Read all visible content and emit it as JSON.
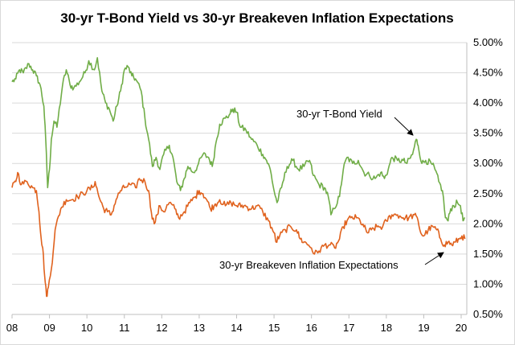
{
  "chart_data": {
    "type": "line",
    "title": "30-yr T-Bond Yield vs 30-yr Breakeven Inflation Expectations",
    "x_label": "",
    "y_label": "",
    "x_ticks": [
      "08",
      "09",
      "10",
      "11",
      "12",
      "13",
      "14",
      "15",
      "16",
      "17",
      "18",
      "19",
      "20"
    ],
    "y_ticks": [
      "0.50%",
      "1.00%",
      "1.50%",
      "2.00%",
      "2.50%",
      "3.00%",
      "3.50%",
      "4.00%",
      "4.50%",
      "5.00%"
    ],
    "ylim": [
      0.5,
      5.0
    ],
    "xlim": [
      2008.0,
      2020.15
    ],
    "grid": "horizontal",
    "y_axis_side": "right",
    "annotations": [
      {
        "text": "30-yr T-Bond Yield",
        "series": 0
      },
      {
        "text": "30-yr Breakeven Inflation Expectations",
        "series": 1
      }
    ],
    "series": [
      {
        "name": "30-yr T-Bond Yield",
        "color": "#70ad47",
        "points": [
          [
            2008.0,
            4.35
          ],
          [
            2008.1,
            4.4
          ],
          [
            2008.2,
            4.55
          ],
          [
            2008.3,
            4.5
          ],
          [
            2008.45,
            4.65
          ],
          [
            2008.55,
            4.55
          ],
          [
            2008.65,
            4.45
          ],
          [
            2008.75,
            4.3
          ],
          [
            2008.85,
            3.95
          ],
          [
            2008.9,
            3.4
          ],
          [
            2008.95,
            2.6
          ],
          [
            2009.0,
            2.9
          ],
          [
            2009.05,
            3.4
          ],
          [
            2009.12,
            3.7
          ],
          [
            2009.2,
            3.6
          ],
          [
            2009.35,
            4.3
          ],
          [
            2009.45,
            4.55
          ],
          [
            2009.55,
            4.3
          ],
          [
            2009.65,
            4.25
          ],
          [
            2009.8,
            4.35
          ],
          [
            2009.95,
            4.5
          ],
          [
            2010.05,
            4.7
          ],
          [
            2010.2,
            4.55
          ],
          [
            2010.28,
            4.75
          ],
          [
            2010.4,
            4.2
          ],
          [
            2010.5,
            4.0
          ],
          [
            2010.6,
            3.9
          ],
          [
            2010.7,
            3.7
          ],
          [
            2010.8,
            3.95
          ],
          [
            2010.9,
            4.2
          ],
          [
            2011.0,
            4.55
          ],
          [
            2011.1,
            4.6
          ],
          [
            2011.2,
            4.45
          ],
          [
            2011.3,
            4.4
          ],
          [
            2011.45,
            4.2
          ],
          [
            2011.55,
            3.75
          ],
          [
            2011.65,
            3.4
          ],
          [
            2011.75,
            2.95
          ],
          [
            2011.85,
            3.1
          ],
          [
            2011.95,
            2.9
          ],
          [
            2012.05,
            3.15
          ],
          [
            2012.2,
            3.3
          ],
          [
            2012.3,
            3.1
          ],
          [
            2012.4,
            2.7
          ],
          [
            2012.5,
            2.55
          ],
          [
            2012.6,
            2.75
          ],
          [
            2012.7,
            2.95
          ],
          [
            2012.85,
            2.85
          ],
          [
            2012.95,
            2.95
          ],
          [
            2013.1,
            3.15
          ],
          [
            2013.25,
            3.1
          ],
          [
            2013.35,
            2.95
          ],
          [
            2013.45,
            3.35
          ],
          [
            2013.55,
            3.65
          ],
          [
            2013.7,
            3.75
          ],
          [
            2013.8,
            3.8
          ],
          [
            2013.9,
            3.9
          ],
          [
            2014.0,
            3.85
          ],
          [
            2014.1,
            3.6
          ],
          [
            2014.25,
            3.55
          ],
          [
            2014.4,
            3.4
          ],
          [
            2014.55,
            3.3
          ],
          [
            2014.7,
            3.15
          ],
          [
            2014.8,
            3.05
          ],
          [
            2014.9,
            2.9
          ],
          [
            2015.0,
            2.55
          ],
          [
            2015.08,
            2.35
          ],
          [
            2015.2,
            2.6
          ],
          [
            2015.35,
            2.95
          ],
          [
            2015.5,
            3.05
          ],
          [
            2015.65,
            2.9
          ],
          [
            2015.8,
            2.95
          ],
          [
            2015.95,
            3.05
          ],
          [
            2016.05,
            2.8
          ],
          [
            2016.2,
            2.65
          ],
          [
            2016.35,
            2.6
          ],
          [
            2016.45,
            2.45
          ],
          [
            2016.52,
            2.15
          ],
          [
            2016.6,
            2.25
          ],
          [
            2016.75,
            2.45
          ],
          [
            2016.85,
            2.9
          ],
          [
            2016.95,
            3.1
          ],
          [
            2017.1,
            3.0
          ],
          [
            2017.25,
            3.05
          ],
          [
            2017.4,
            2.85
          ],
          [
            2017.55,
            2.8
          ],
          [
            2017.7,
            2.75
          ],
          [
            2017.85,
            2.85
          ],
          [
            2017.95,
            2.75
          ],
          [
            2018.05,
            2.9
          ],
          [
            2018.15,
            3.1
          ],
          [
            2018.3,
            3.05
          ],
          [
            2018.45,
            3.05
          ],
          [
            2018.55,
            3.0
          ],
          [
            2018.7,
            3.15
          ],
          [
            2018.8,
            3.4
          ],
          [
            2018.85,
            3.3
          ],
          [
            2018.95,
            3.0
          ],
          [
            2019.05,
            3.05
          ],
          [
            2019.2,
            3.0
          ],
          [
            2019.3,
            2.9
          ],
          [
            2019.4,
            2.7
          ],
          [
            2019.5,
            2.55
          ],
          [
            2019.58,
            2.1
          ],
          [
            2019.65,
            2.05
          ],
          [
            2019.72,
            2.25
          ],
          [
            2019.8,
            2.3
          ],
          [
            2019.9,
            2.35
          ],
          [
            2019.98,
            2.3
          ],
          [
            2020.05,
            2.05
          ],
          [
            2020.1,
            2.1
          ]
        ]
      },
      {
        "name": "30-yr Breakeven Inflation Expectations",
        "color": "#e0621e",
        "points": [
          [
            2008.0,
            2.6
          ],
          [
            2008.1,
            2.7
          ],
          [
            2008.15,
            2.85
          ],
          [
            2008.25,
            2.65
          ],
          [
            2008.4,
            2.7
          ],
          [
            2008.55,
            2.6
          ],
          [
            2008.65,
            2.55
          ],
          [
            2008.72,
            2.2
          ],
          [
            2008.78,
            1.75
          ],
          [
            2008.82,
            1.6
          ],
          [
            2008.87,
            1.15
          ],
          [
            2008.92,
            0.8
          ],
          [
            2008.97,
            0.95
          ],
          [
            2009.05,
            1.25
          ],
          [
            2009.15,
            1.9
          ],
          [
            2009.3,
            2.25
          ],
          [
            2009.45,
            2.4
          ],
          [
            2009.6,
            2.4
          ],
          [
            2009.75,
            2.45
          ],
          [
            2009.9,
            2.5
          ],
          [
            2010.0,
            2.55
          ],
          [
            2010.15,
            2.6
          ],
          [
            2010.22,
            2.7
          ],
          [
            2010.32,
            2.45
          ],
          [
            2010.45,
            2.25
          ],
          [
            2010.55,
            2.2
          ],
          [
            2010.65,
            2.15
          ],
          [
            2010.78,
            2.4
          ],
          [
            2010.9,
            2.55
          ],
          [
            2011.0,
            2.6
          ],
          [
            2011.15,
            2.65
          ],
          [
            2011.3,
            2.6
          ],
          [
            2011.4,
            2.75
          ],
          [
            2011.55,
            2.7
          ],
          [
            2011.65,
            2.55
          ],
          [
            2011.72,
            2.2
          ],
          [
            2011.8,
            2.0
          ],
          [
            2011.88,
            2.15
          ],
          [
            2011.95,
            2.3
          ],
          [
            2012.05,
            2.2
          ],
          [
            2012.2,
            2.35
          ],
          [
            2012.35,
            2.25
          ],
          [
            2012.45,
            2.1
          ],
          [
            2012.6,
            2.2
          ],
          [
            2012.75,
            2.35
          ],
          [
            2012.9,
            2.45
          ],
          [
            2013.0,
            2.55
          ],
          [
            2013.1,
            2.5
          ],
          [
            2013.2,
            2.4
          ],
          [
            2013.3,
            2.25
          ],
          [
            2013.4,
            2.3
          ],
          [
            2013.55,
            2.4
          ],
          [
            2013.7,
            2.3
          ],
          [
            2013.85,
            2.35
          ],
          [
            2014.0,
            2.3
          ],
          [
            2014.2,
            2.3
          ],
          [
            2014.4,
            2.25
          ],
          [
            2014.55,
            2.3
          ],
          [
            2014.7,
            2.2
          ],
          [
            2014.85,
            2.05
          ],
          [
            2015.0,
            1.85
          ],
          [
            2015.05,
            1.7
          ],
          [
            2015.15,
            1.8
          ],
          [
            2015.3,
            1.9
          ],
          [
            2015.45,
            1.95
          ],
          [
            2015.6,
            1.9
          ],
          [
            2015.7,
            1.75
          ],
          [
            2015.8,
            1.7
          ],
          [
            2015.92,
            1.65
          ],
          [
            2016.0,
            1.6
          ],
          [
            2016.08,
            1.5
          ],
          [
            2016.2,
            1.55
          ],
          [
            2016.35,
            1.65
          ],
          [
            2016.5,
            1.65
          ],
          [
            2016.62,
            1.6
          ],
          [
            2016.75,
            1.75
          ],
          [
            2016.85,
            1.95
          ],
          [
            2016.95,
            2.05
          ],
          [
            2017.05,
            2.1
          ],
          [
            2017.2,
            2.1
          ],
          [
            2017.3,
            2.05
          ],
          [
            2017.4,
            1.95
          ],
          [
            2017.5,
            1.85
          ],
          [
            2017.6,
            1.9
          ],
          [
            2017.75,
            1.95
          ],
          [
            2017.9,
            1.95
          ],
          [
            2018.0,
            2.05
          ],
          [
            2018.15,
            2.15
          ],
          [
            2018.3,
            2.15
          ],
          [
            2018.45,
            2.1
          ],
          [
            2018.6,
            2.1
          ],
          [
            2018.75,
            2.15
          ],
          [
            2018.85,
            2.05
          ],
          [
            2018.92,
            1.85
          ],
          [
            2019.0,
            1.8
          ],
          [
            2019.12,
            1.9
          ],
          [
            2019.25,
            1.95
          ],
          [
            2019.35,
            1.9
          ],
          [
            2019.45,
            1.75
          ],
          [
            2019.55,
            1.65
          ],
          [
            2019.65,
            1.7
          ],
          [
            2019.75,
            1.65
          ],
          [
            2019.85,
            1.7
          ],
          [
            2019.95,
            1.75
          ],
          [
            2020.02,
            1.8
          ],
          [
            2020.1,
            1.75
          ]
        ]
      }
    ]
  }
}
